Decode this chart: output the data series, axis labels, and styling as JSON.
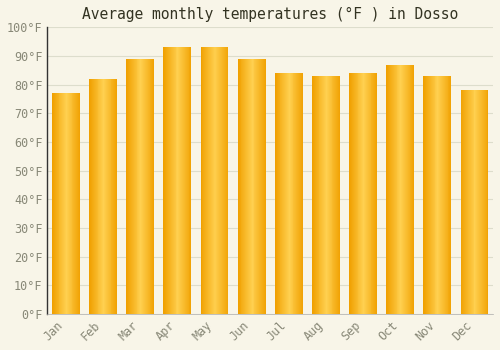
{
  "title": "Average monthly temperatures (°F ) in Dosso",
  "months": [
    "Jan",
    "Feb",
    "Mar",
    "Apr",
    "May",
    "Jun",
    "Jul",
    "Aug",
    "Sep",
    "Oct",
    "Nov",
    "Dec"
  ],
  "values": [
    77,
    82,
    89,
    93,
    93,
    89,
    84,
    83,
    84,
    87,
    83,
    78
  ],
  "bar_color_center": "#FFD050",
  "bar_color_edge": "#F0A000",
  "ylim": [
    0,
    100
  ],
  "ytick_step": 10,
  "background_color": "#F8F5E8",
  "grid_color": "#DDDDCC",
  "title_fontsize": 10.5,
  "tick_fontsize": 8.5,
  "bar_width": 0.75
}
